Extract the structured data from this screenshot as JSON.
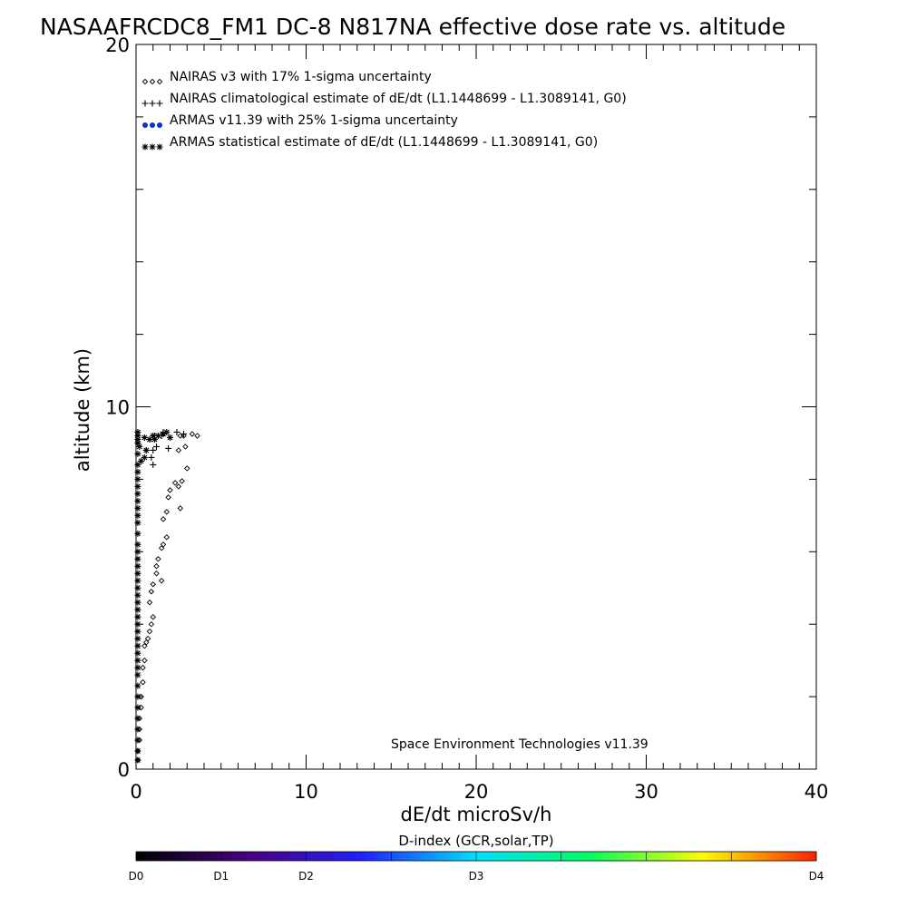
{
  "chart_data": {
    "type": "scatter",
    "title": "NASAAFRCDC8_FM1 DC-8   N817NA effective dose rate vs. altitude",
    "xlabel": "dE/dt microSv/h",
    "ylabel": "altitude (km)",
    "xlim": [
      0,
      40
    ],
    "ylim": [
      0,
      20
    ],
    "x_ticks": [
      "0",
      "10",
      "20",
      "30",
      "40"
    ],
    "y_ticks": [
      "0",
      "10",
      "20"
    ],
    "grid": false,
    "legend_position": "top-left",
    "legend": [
      {
        "marker": "diamond",
        "color": "#000000",
        "label": "NAIRAS v3 with 17% 1-sigma uncertainty"
      },
      {
        "marker": "plus",
        "color": "#000000",
        "label": "NAIRAS climatological estimate of dE/dt (L1.1448699 - L1.3089141, G0)"
      },
      {
        "marker": "dot",
        "color": "#1030d0",
        "label": "ARMAS v11.39 with 25% 1-sigma uncertainty"
      },
      {
        "marker": "asterisk",
        "color": "#000000",
        "label": "ARMAS statistical estimate of dE/dt (L1.1448699 - L1.3089141, G0)"
      }
    ],
    "annotation": "Space Environment Technologies v11.39",
    "colorbar": {
      "title": "D-index (GCR,solar,TP)",
      "labels": [
        {
          "text": "D0",
          "pos": 0
        },
        {
          "text": "D1",
          "pos": 0.125
        },
        {
          "text": "D2",
          "pos": 0.25
        },
        {
          "text": "D3",
          "pos": 0.5
        },
        {
          "text": "D4",
          "pos": 1
        }
      ],
      "colors": [
        "#000000",
        "#4a0080",
        "#2020ff",
        "#00e0ff",
        "#00ff60",
        "#ffff00",
        "#ff2000"
      ]
    },
    "series": [
      {
        "name": "NAIRAS v3 with 17% 1-sigma uncertainty",
        "marker": "diamond",
        "points": [
          [
            3.6,
            9.2
          ],
          [
            3.3,
            9.25
          ],
          [
            2.8,
            9.2
          ],
          [
            2.6,
            9.2
          ],
          [
            2.9,
            8.9
          ],
          [
            2.5,
            8.8
          ],
          [
            3.0,
            8.3
          ],
          [
            2.7,
            7.95
          ],
          [
            2.5,
            7.8
          ],
          [
            2.3,
            7.9
          ],
          [
            2.0,
            7.7
          ],
          [
            1.9,
            7.5
          ],
          [
            2.6,
            7.2
          ],
          [
            1.8,
            7.1
          ],
          [
            1.6,
            6.9
          ],
          [
            1.8,
            6.4
          ],
          [
            1.6,
            6.2
          ],
          [
            1.5,
            6.1
          ],
          [
            1.3,
            5.8
          ],
          [
            1.2,
            5.6
          ],
          [
            1.2,
            5.4
          ],
          [
            1.5,
            5.2
          ],
          [
            1.0,
            5.1
          ],
          [
            0.9,
            4.9
          ],
          [
            0.8,
            4.6
          ],
          [
            1.0,
            4.2
          ],
          [
            0.9,
            4.0
          ],
          [
            0.8,
            3.8
          ],
          [
            0.7,
            3.6
          ],
          [
            0.6,
            3.5
          ],
          [
            0.5,
            3.4
          ],
          [
            0.5,
            3.0
          ],
          [
            0.4,
            2.8
          ],
          [
            0.4,
            2.4
          ],
          [
            0.3,
            2.0
          ],
          [
            0.3,
            1.7
          ],
          [
            0.2,
            1.4
          ],
          [
            0.2,
            1.1
          ],
          [
            0.2,
            0.8
          ],
          [
            0.1,
            0.5
          ],
          [
            0.1,
            0.25
          ]
        ]
      },
      {
        "name": "NAIRAS climatological estimate of dE/dt (L1.1448699 - L1.3089141, G0)",
        "marker": "plus",
        "points": [
          [
            2.8,
            9.25
          ],
          [
            2.4,
            9.3
          ],
          [
            1.6,
            9.3
          ],
          [
            1.5,
            9.2
          ],
          [
            1.1,
            9.2
          ],
          [
            1.2,
            8.9
          ],
          [
            1.0,
            8.8
          ],
          [
            1.9,
            8.85
          ],
          [
            1.0,
            8.4
          ],
          [
            0.9,
            8.6
          ],
          [
            0.6,
            8.8
          ]
        ]
      },
      {
        "name": "ARMAS statistical estimate of dE/dt (L1.1448699 - L1.3089141, G0)",
        "marker": "asterisk",
        "points": [
          [
            1.8,
            9.3
          ],
          [
            1.6,
            9.25
          ],
          [
            1.3,
            9.2
          ],
          [
            1.0,
            9.2
          ],
          [
            2.0,
            9.15
          ],
          [
            1.1,
            9.1
          ],
          [
            0.8,
            9.1
          ],
          [
            0.5,
            9.15
          ],
          [
            0.6,
            8.8
          ],
          [
            0.5,
            8.6
          ],
          [
            0.3,
            8.5
          ],
          [
            0.2,
            8.9
          ],
          [
            0.1,
            9.3
          ],
          [
            0.1,
            9.2
          ],
          [
            0.1,
            9.1
          ],
          [
            0.1,
            9.0
          ],
          [
            0.1,
            8.7
          ],
          [
            0.1,
            8.4
          ],
          [
            0.1,
            8.2
          ],
          [
            0.1,
            8.0
          ],
          [
            0.1,
            7.8
          ],
          [
            0.1,
            7.6
          ],
          [
            0.1,
            7.4
          ],
          [
            0.1,
            7.2
          ],
          [
            0.1,
            7.0
          ],
          [
            0.1,
            6.8
          ],
          [
            0.1,
            6.5
          ],
          [
            0.1,
            6.2
          ],
          [
            0.1,
            6.0
          ],
          [
            0.1,
            5.8
          ],
          [
            0.1,
            5.6
          ],
          [
            0.1,
            5.4
          ],
          [
            0.1,
            5.2
          ],
          [
            0.1,
            5.0
          ],
          [
            0.1,
            4.8
          ],
          [
            0.1,
            4.6
          ],
          [
            0.1,
            4.4
          ],
          [
            0.1,
            4.2
          ],
          [
            0.1,
            4.0
          ],
          [
            0.1,
            3.8
          ],
          [
            0.1,
            3.6
          ],
          [
            0.1,
            3.4
          ],
          [
            0.1,
            3.2
          ],
          [
            0.1,
            3.0
          ],
          [
            0.1,
            2.8
          ],
          [
            0.1,
            2.6
          ],
          [
            0.1,
            2.3
          ],
          [
            0.1,
            2.0
          ],
          [
            0.1,
            1.7
          ],
          [
            0.1,
            1.4
          ],
          [
            0.1,
            1.1
          ],
          [
            0.1,
            0.8
          ],
          [
            0.1,
            0.5
          ],
          [
            0.1,
            0.25
          ]
        ]
      }
    ]
  }
}
